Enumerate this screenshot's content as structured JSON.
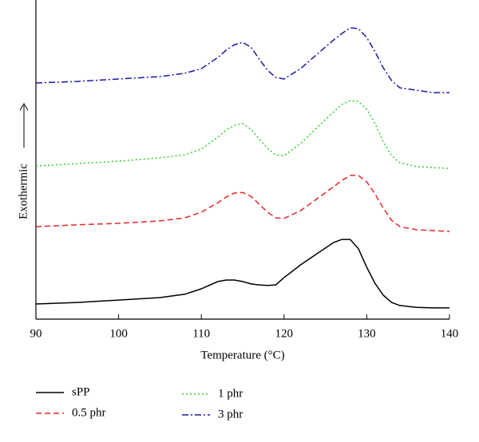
{
  "chart_data": {
    "type": "line",
    "x_label": "Temperature (°C)",
    "y_label": "Exothermic",
    "x": [
      90,
      95,
      100,
      105,
      108,
      110,
      112,
      113,
      114,
      115,
      116,
      117,
      118,
      119,
      120,
      122,
      124,
      126,
      127,
      128,
      129,
      130,
      131,
      132,
      133,
      134,
      136,
      138,
      140
    ],
    "series": [
      {
        "name": "sPP",
        "color": "#000000",
        "dash": "solid",
        "values": [
          5.0,
          5.5,
          6.3,
          7.1,
          8.2,
          10.0,
          12.4,
          12.9,
          12.9,
          12.4,
          11.6,
          11.3,
          11.1,
          11.3,
          13.7,
          17.9,
          21.6,
          25.3,
          26.3,
          26.3,
          23.2,
          17.1,
          11.8,
          7.9,
          5.5,
          4.5,
          3.9,
          3.7,
          3.7
        ]
      },
      {
        "name": "0.5 phr",
        "color": "#e8262a",
        "dash": "dashed",
        "values": [
          30.5,
          31.1,
          31.6,
          32.4,
          33.4,
          35.3,
          38.4,
          40.3,
          41.6,
          41.8,
          40.5,
          37.9,
          35.3,
          33.4,
          33.2,
          35.8,
          39.7,
          43.7,
          45.8,
          47.4,
          47.4,
          45.3,
          41.3,
          36.6,
          32.6,
          30.5,
          29.5,
          29.2,
          28.9
        ]
      },
      {
        "name": "1 phr",
        "color": "#2fd12f",
        "dash": "dotted",
        "values": [
          50.5,
          51.3,
          52.1,
          53.2,
          54.2,
          56.1,
          60.0,
          62.4,
          63.9,
          64.5,
          62.6,
          59.5,
          56.3,
          54.2,
          53.9,
          57.9,
          63.2,
          68.4,
          70.8,
          72.1,
          71.8,
          69.2,
          64.5,
          58.4,
          53.9,
          51.6,
          50.3,
          50.0,
          49.7
        ]
      },
      {
        "name": "3 phr",
        "color": "#1a1aa8",
        "dash": "dashdot",
        "values": [
          77.9,
          78.4,
          79.2,
          80.0,
          81.1,
          82.6,
          86.3,
          88.7,
          90.5,
          91.3,
          89.7,
          85.8,
          82.1,
          79.7,
          79.2,
          82.6,
          87.4,
          92.1,
          94.2,
          96.1,
          95.8,
          92.9,
          88.2,
          82.9,
          78.7,
          76.3,
          75.5,
          74.7,
          74.7
        ]
      }
    ],
    "xlim": [
      90,
      140
    ],
    "xticks": [
      90,
      100,
      110,
      120,
      130,
      140
    ],
    "ylim": [
      0,
      100
    ],
    "legend": "bottom"
  }
}
